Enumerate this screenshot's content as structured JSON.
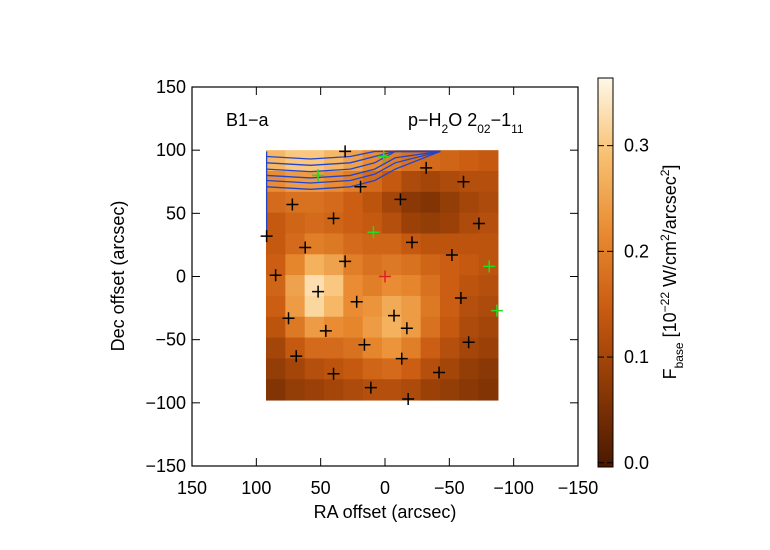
{
  "chart_data": {
    "type": "heatmap",
    "title": "B1−a",
    "subtitle": [
      {
        "text": "p−H"
      },
      {
        "text": "2",
        "shift": "sub"
      },
      {
        "text": "O 2"
      },
      {
        "text": "02",
        "shift": "sub"
      },
      {
        "text": "−1"
      },
      {
        "text": "11",
        "shift": "sub"
      }
    ],
    "xlabel": "RA offset (arcsec)",
    "ylabel": "Dec offset (arcsec)",
    "xlim": [
      150,
      -150
    ],
    "ylim": [
      -150,
      150
    ],
    "xticks": [
      {
        "value": 150,
        "label": "150"
      },
      {
        "value": 100,
        "label": "100"
      },
      {
        "value": 50,
        "label": "50"
      },
      {
        "value": 0,
        "label": "0"
      },
      {
        "value": -50,
        "label": "−50"
      },
      {
        "value": -100,
        "label": "−100"
      },
      {
        "value": -150,
        "label": "−150"
      }
    ],
    "yticks": [
      {
        "value": -150,
        "label": "−150"
      },
      {
        "value": -100,
        "label": "−100"
      },
      {
        "value": -50,
        "label": "−50"
      },
      {
        "value": 0,
        "label": "0"
      },
      {
        "value": 50,
        "label": "50"
      },
      {
        "value": 100,
        "label": "100"
      },
      {
        "value": 150,
        "label": "150"
      }
    ],
    "map_ra": [
      92.5,
      -87.8
    ],
    "map_dec": [
      100,
      -97.8
    ],
    "z": [
      [
        0.28,
        0.3,
        0.3,
        0.28,
        0.25,
        0.22,
        0.2,
        0.18,
        0.17,
        0.16,
        0.15,
        0.14
      ],
      [
        0.22,
        0.24,
        0.24,
        0.22,
        0.2,
        0.17,
        0.14,
        0.11,
        0.1,
        0.11,
        0.12,
        0.12
      ],
      [
        0.17,
        0.18,
        0.18,
        0.17,
        0.15,
        0.13,
        0.1,
        0.07,
        0.06,
        0.08,
        0.1,
        0.11
      ],
      [
        0.14,
        0.16,
        0.17,
        0.16,
        0.15,
        0.14,
        0.12,
        0.09,
        0.08,
        0.09,
        0.11,
        0.12
      ],
      [
        0.14,
        0.17,
        0.2,
        0.19,
        0.17,
        0.16,
        0.16,
        0.14,
        0.13,
        0.13,
        0.13,
        0.13
      ],
      [
        0.15,
        0.21,
        0.27,
        0.25,
        0.2,
        0.18,
        0.19,
        0.18,
        0.16,
        0.15,
        0.14,
        0.13
      ],
      [
        0.16,
        0.25,
        0.33,
        0.3,
        0.22,
        0.2,
        0.22,
        0.21,
        0.18,
        0.15,
        0.13,
        0.12
      ],
      [
        0.15,
        0.24,
        0.32,
        0.28,
        0.22,
        0.23,
        0.26,
        0.24,
        0.19,
        0.15,
        0.12,
        0.11
      ],
      [
        0.13,
        0.19,
        0.24,
        0.22,
        0.21,
        0.24,
        0.27,
        0.24,
        0.18,
        0.14,
        0.11,
        0.1
      ],
      [
        0.1,
        0.14,
        0.17,
        0.17,
        0.18,
        0.21,
        0.23,
        0.2,
        0.15,
        0.12,
        0.1,
        0.09
      ],
      [
        0.08,
        0.1,
        0.12,
        0.13,
        0.14,
        0.16,
        0.17,
        0.15,
        0.12,
        0.1,
        0.08,
        0.07
      ],
      [
        0.06,
        0.08,
        0.09,
        0.1,
        0.11,
        0.12,
        0.12,
        0.11,
        0.09,
        0.08,
        0.07,
        0.06
      ]
    ],
    "colormap": [
      "#4a1800",
      "#8a3805",
      "#c85a10",
      "#e88a30",
      "#f8c070",
      "#fff8e8"
    ],
    "clim": [
      -0.004,
      0.364
    ],
    "cticks": [
      {
        "value": 0,
        "label": "0.0"
      },
      0.1,
      0.2,
      0.3
    ],
    "clabel": [
      {
        "text": "F"
      },
      {
        "text": "base",
        "shift": "sub"
      },
      {
        "text": " [10"
      },
      {
        "text": "−22",
        "shift": "super"
      },
      {
        "text": " W/cm"
      },
      {
        "text": "2",
        "shift": "super"
      },
      {
        "text": "/arcsec"
      },
      {
        "text": "2",
        "shift": "super"
      },
      {
        "text": "]"
      }
    ],
    "contours": {
      "color": "#2244cc",
      "lines": [
        {
          "ra": [
            92,
            58,
            27,
            8,
            -8,
            -43
          ],
          "dec": [
            95,
            93,
            95,
            99,
            99,
            99
          ]
        },
        {
          "ra": [
            92,
            58,
            27,
            8,
            -8,
            -43
          ],
          "dec": [
            90,
            88,
            90,
            95,
            99,
            99
          ]
        },
        {
          "ra": [
            92,
            58,
            27,
            8,
            -8,
            -43
          ],
          "dec": [
            85,
            83,
            85,
            90,
            99,
            99
          ]
        },
        {
          "ra": [
            92,
            58,
            27,
            8,
            -8,
            -43
          ],
          "dec": [
            80,
            78,
            80,
            85,
            94,
            99
          ]
        },
        {
          "ra": [
            92,
            58,
            27,
            8,
            -8,
            -43
          ],
          "dec": [
            76,
            74,
            76,
            81,
            90,
            99
          ]
        },
        {
          "ra": [
            92,
            58,
            27,
            8,
            -8,
            -43
          ],
          "dec": [
            71,
            69,
            71,
            76,
            85,
            99
          ]
        },
        {
          "ra": [
            92,
            92
          ],
          "dec": [
            99,
            30
          ]
        }
      ]
    },
    "marker_groups": [
      {
        "color": "#000000",
        "ra": [
          31,
          19,
          -32,
          -61,
          72,
          -12,
          40,
          -73,
          92,
          -21,
          62,
          31,
          -52,
          85,
          52,
          22,
          -59,
          75,
          -7,
          46,
          -17,
          16,
          -65,
          69,
          -13,
          40,
          -42,
          11,
          -18
        ],
        "dec": [
          99,
          71,
          86,
          75,
          57,
          61,
          46,
          42,
          32,
          27,
          23,
          12,
          17,
          1,
          -12,
          -20,
          -17,
          -33,
          -31,
          -43,
          -41,
          -54,
          -52,
          -63,
          -65,
          -77,
          -76,
          -88,
          -97
        ]
      },
      {
        "color": "#22dd22",
        "ra": [
          52,
          1,
          9,
          -81,
          -87
        ],
        "dec": [
          80,
          95,
          35,
          8,
          -27
        ]
      },
      {
        "color": "#dd2222",
        "ra": [
          0
        ],
        "dec": [
          0
        ]
      }
    ]
  }
}
